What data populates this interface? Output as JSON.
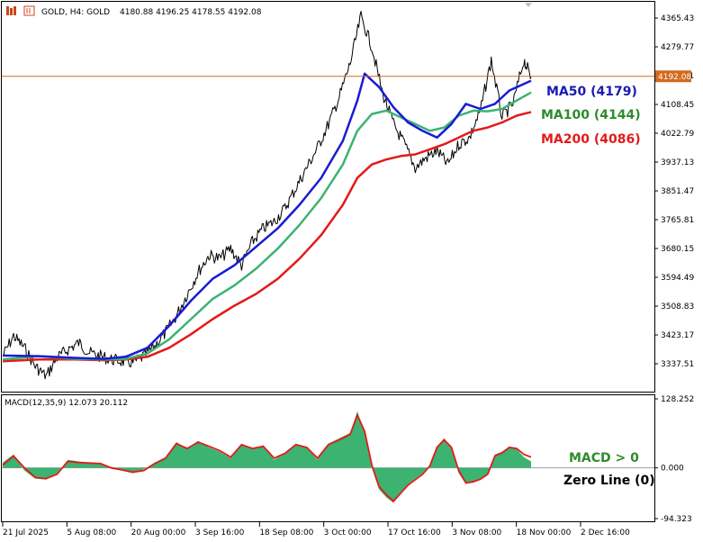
{
  "header": {
    "symbol_timeframe": "GOLD, H4:  GOLD",
    "ohlc": "4180.88 4196.25 4178.55 4192.08"
  },
  "current_price_label": "4192.08",
  "annotations": {
    "ma50": "MA50 (4179)",
    "ma100": "MA100 (4144)",
    "ma200": "MA200 (4086)",
    "macd_status": "MACD > 0",
    "zero_line": "Zero Line (0)"
  },
  "colors": {
    "price": "#000000",
    "ma50": "#1a1ad6",
    "ma100": "#3cb371",
    "ma200": "#e31a1a",
    "macd_hist": "#3cb371",
    "macd_signal": "#e31a1a",
    "current_price_line": "#d2691e",
    "ma50_label": "#1a1ab4",
    "ma100_label": "#2e8b2e",
    "ma200_label": "#e31a1a",
    "macd_label": "#2e8b2e"
  },
  "chart_data": [
    {
      "type": "line",
      "panel": "price",
      "y_ticks": [
        "4365.43",
        "4279.77",
        "4194.11",
        "4108.45",
        "4022.79",
        "3937.13",
        "3851.47",
        "3765.81",
        "3680.15",
        "3594.49",
        "3508.83",
        "3423.17",
        "3337.51"
      ],
      "ylim": [
        3300,
        4400
      ],
      "x_labels": [
        "21 Jul 2025",
        "5 Aug 08:00",
        "20 Aug 00:00",
        "3 Sep 16:00",
        "18 Sep 08:00",
        "3 Oct 00:00",
        "17 Oct 16:00",
        "3 Nov 08:00",
        "18 Nov 00:00",
        "2 Dec 16:00"
      ],
      "current_price": 4192.08,
      "series": [
        {
          "name": "Price",
          "x": [
            0,
            3,
            6,
            9,
            12,
            15,
            18,
            21,
            24,
            27,
            30,
            33,
            36,
            39,
            42,
            45,
            48,
            51,
            54,
            57,
            60,
            63,
            66,
            69,
            72,
            75,
            78,
            81,
            84,
            87,
            90,
            93,
            96,
            99,
            102,
            105,
            108,
            111,
            114,
            117,
            120,
            123,
            126,
            129,
            132,
            135,
            138,
            141,
            144,
            146
          ],
          "values": [
            3360,
            3420,
            3385,
            3330,
            3300,
            3355,
            3380,
            3400,
            3370,
            3360,
            3350,
            3345,
            3340,
            3360,
            3390,
            3430,
            3480,
            3545,
            3610,
            3660,
            3650,
            3680,
            3630,
            3700,
            3740,
            3760,
            3800,
            3860,
            3920,
            3980,
            4050,
            4130,
            4230,
            4370,
            4280,
            4140,
            4050,
            3990,
            3920,
            3950,
            3970,
            3930,
            3990,
            4010,
            4090,
            4240,
            4070,
            4110,
            4240,
            4190
          ]
        },
        {
          "name": "MA50",
          "x": [
            0,
            10,
            20,
            28,
            34,
            40,
            46,
            52,
            58,
            64,
            70,
            76,
            82,
            88,
            94,
            98,
            100,
            104,
            108,
            112,
            116,
            120,
            124,
            128,
            132,
            136,
            140,
            146
          ],
          "values": [
            3362,
            3360,
            3355,
            3352,
            3358,
            3385,
            3450,
            3525,
            3590,
            3630,
            3685,
            3740,
            3810,
            3890,
            4000,
            4120,
            4200,
            4160,
            4100,
            4055,
            4030,
            4010,
            4050,
            4110,
            4095,
            4110,
            4150,
            4179
          ]
        },
        {
          "name": "MA100",
          "x": [
            0,
            10,
            20,
            28,
            34,
            40,
            46,
            52,
            58,
            64,
            70,
            76,
            82,
            88,
            94,
            98,
            102,
            106,
            110,
            114,
            118,
            122,
            126,
            130,
            134,
            138,
            142,
            146
          ],
          "values": [
            3350,
            3360,
            3352,
            3350,
            3352,
            3368,
            3410,
            3470,
            3530,
            3570,
            3620,
            3680,
            3750,
            3830,
            3930,
            4030,
            4080,
            4090,
            4070,
            4050,
            4030,
            4040,
            4075,
            4090,
            4088,
            4095,
            4120,
            4144
          ]
        },
        {
          "name": "MA200",
          "x": [
            0,
            10,
            20,
            28,
            34,
            40,
            46,
            52,
            58,
            64,
            70,
            76,
            82,
            88,
            94,
            98,
            102,
            106,
            110,
            114,
            118,
            122,
            126,
            130,
            134,
            138,
            142,
            146
          ],
          "values": [
            3345,
            3350,
            3350,
            3348,
            3350,
            3358,
            3385,
            3425,
            3470,
            3510,
            3545,
            3590,
            3650,
            3720,
            3810,
            3890,
            3930,
            3945,
            3955,
            3960,
            3975,
            3990,
            4010,
            4030,
            4040,
            4055,
            4075,
            4086
          ]
        }
      ]
    },
    {
      "type": "area",
      "panel": "macd",
      "title": "MACD(12,35,9) 12.073 20.112",
      "y_ticks": [
        "128.252",
        "0.000",
        "-94.323"
      ],
      "ylim": [
        -94.323,
        128.252
      ],
      "series": [
        {
          "name": "MACD",
          "x": [
            0,
            3,
            6,
            9,
            12,
            15,
            18,
            21,
            24,
            27,
            30,
            33,
            36,
            39,
            42,
            45,
            48,
            51,
            54,
            57,
            60,
            63,
            66,
            69,
            72,
            75,
            78,
            81,
            84,
            87,
            90,
            93,
            96,
            98,
            100,
            102,
            104,
            106,
            108,
            110,
            112,
            114,
            116,
            118,
            120,
            122,
            124,
            126,
            128,
            130,
            132,
            134,
            136,
            138,
            140,
            142,
            144,
            146
          ],
          "values": [
            10,
            25,
            -5,
            -20,
            -22,
            -10,
            15,
            12,
            8,
            10,
            -2,
            -5,
            -10,
            -3,
            10,
            20,
            48,
            35,
            50,
            38,
            30,
            18,
            45,
            35,
            42,
            15,
            28,
            45,
            38,
            15,
            45,
            55,
            65,
            105,
            65,
            0,
            -40,
            -55,
            -65,
            -45,
            -30,
            -20,
            -10,
            5,
            40,
            55,
            35,
            -10,
            -30,
            -25,
            -20,
            -10,
            25,
            30,
            40,
            35,
            20,
            12
          ]
        },
        {
          "name": "Signal",
          "x": [
            0,
            3,
            6,
            9,
            12,
            15,
            18,
            21,
            24,
            27,
            30,
            33,
            36,
            39,
            42,
            45,
            48,
            51,
            54,
            57,
            60,
            63,
            66,
            69,
            72,
            75,
            78,
            81,
            84,
            87,
            90,
            93,
            96,
            98,
            100,
            102,
            104,
            106,
            108,
            110,
            112,
            114,
            116,
            118,
            120,
            122,
            124,
            126,
            128,
            130,
            132,
            134,
            136,
            138,
            140,
            142,
            144,
            146
          ],
          "values": [
            5,
            22,
            0,
            -18,
            -20,
            -12,
            12,
            10,
            9,
            8,
            0,
            -4,
            -8,
            -5,
            8,
            18,
            45,
            36,
            48,
            40,
            32,
            20,
            43,
            36,
            40,
            18,
            27,
            43,
            38,
            18,
            43,
            52,
            62,
            98,
            68,
            5,
            -35,
            -50,
            -62,
            -47,
            -32,
            -22,
            -12,
            3,
            38,
            52,
            38,
            -5,
            -28,
            -26,
            -21,
            -12,
            22,
            28,
            38,
            36,
            25,
            20
          ]
        }
      ]
    }
  ]
}
